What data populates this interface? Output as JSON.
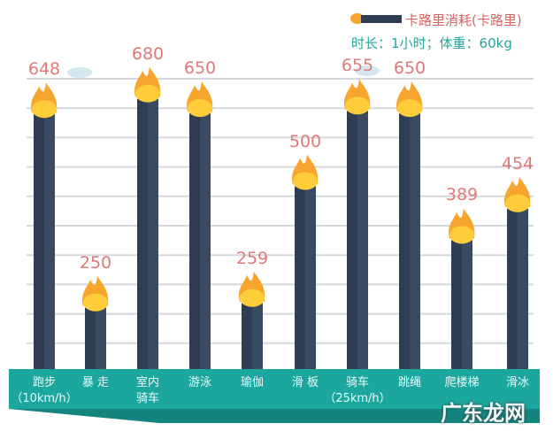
{
  "chart_data": {
    "type": "bar",
    "title": "",
    "legend": {
      "series_name": "卡路里消耗(卡路里)",
      "subtitle": "时长：1小时；体重：60kg",
      "placement": "top-right"
    },
    "categories": [
      [
        "跑步",
        "（10km/h）"
      ],
      [
        "暴 走"
      ],
      [
        "室内",
        "骑车"
      ],
      [
        "游泳"
      ],
      [
        "瑜伽"
      ],
      [
        "滑 板"
      ],
      [
        "骑车",
        "（25km/h）"
      ],
      [
        "跳绳"
      ],
      [
        "爬楼梯"
      ],
      [
        "滑冰"
      ]
    ],
    "values": [
      648,
      250,
      680,
      650,
      259,
      500,
      655,
      650,
      389,
      454
    ],
    "grid": true,
    "colors": {
      "bar": "#2f3d52",
      "label": "#e07a78",
      "band": "#1ca79e",
      "flame": "#f8a530"
    }
  },
  "watermark": "广东龙网"
}
